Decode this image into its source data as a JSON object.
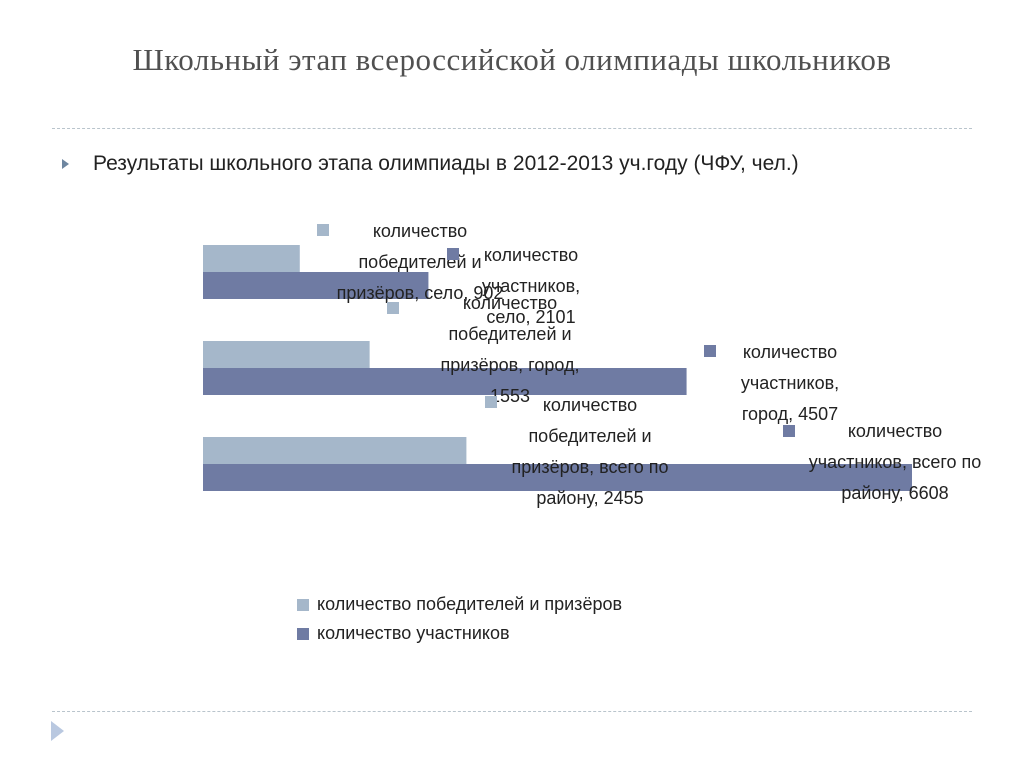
{
  "slide": {
    "title": "Школьный этап всероссийской олимпиады школьников",
    "bullet": "Результаты школьного этапа олимпиады в 2012-2013 уч.году (ЧФУ, чел.)"
  },
  "colors": {
    "winners": "#a5b7ca",
    "participants": "#6f7ba3",
    "bullet_accent": "#6e86a0",
    "divider": "#b9c4cc"
  },
  "chart_data": {
    "type": "bar",
    "orientation": "horizontal",
    "categories": [
      "село",
      "город",
      "всего по району"
    ],
    "series": [
      {
        "name": "количество победителей и призёров",
        "values": [
          902,
          1553,
          2455
        ],
        "labels": [
          "количество победителей и призёров, село, 902",
          "количество победителей и призёров, город, 1553",
          "количество победителей и призёров, всего по району, 2455"
        ]
      },
      {
        "name": "количество участников",
        "values": [
          2101,
          4507,
          6608
        ],
        "labels": [
          "количество участников, село, 2101",
          "количество участников, город, 4507",
          "количество участников, всего по району, 6608"
        ]
      }
    ],
    "xlim": [
      0,
      6608
    ],
    "grid": false,
    "axis_labels_visible": false,
    "legend": "bottom"
  }
}
